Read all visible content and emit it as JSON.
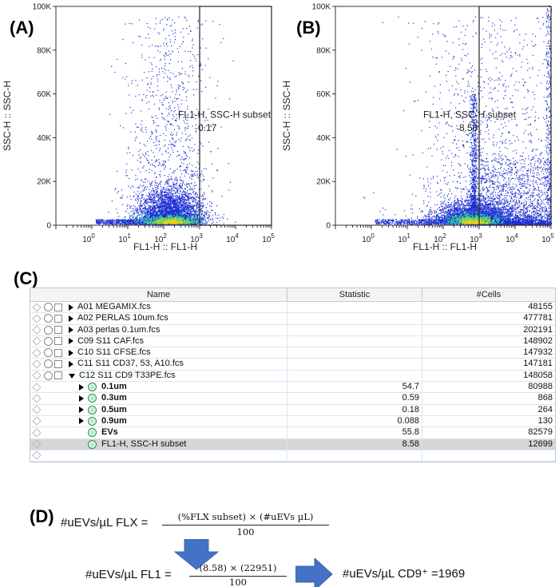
{
  "panels": {
    "a": "(A)",
    "b": "(B)",
    "c": "(C)",
    "d": "(D)"
  },
  "chart_data": [
    {
      "type": "scatter",
      "panel": "A",
      "xlabel": "FL1-H :: FL1-H",
      "ylabel": "SSC-H :: SSC-H",
      "x_scale": "log",
      "xlim": [
        0.1,
        100000
      ],
      "ylim": [
        0,
        100000
      ],
      "x_ticks": [
        1,
        10,
        100,
        1000,
        10000,
        100000
      ],
      "y_ticks": [
        0,
        20000,
        40000,
        60000,
        80000,
        100000
      ],
      "x_tick_labels": [
        {
          "base": "10",
          "exp": "0"
        },
        {
          "base": "10",
          "exp": "1"
        },
        {
          "base": "10",
          "exp": "2"
        },
        {
          "base": "10",
          "exp": "3"
        },
        {
          "base": "10",
          "exp": "4"
        },
        {
          "base": "10",
          "exp": "5"
        }
      ],
      "y_tick_labels": [
        "0",
        "20K",
        "40K",
        "60K",
        "80K",
        "100K"
      ],
      "gate": {
        "name": "FL1-H, SSC-H subset",
        "value": "0.17",
        "x_range": [
          1000,
          100000
        ],
        "y_range": [
          0,
          100000
        ]
      },
      "population": {
        "center_x": 150,
        "center_y": 1800,
        "bulk_extent_x": [
          10,
          900
        ],
        "colormap": "density (blue to green to yellow to red)"
      }
    },
    {
      "type": "scatter",
      "panel": "B",
      "xlabel": "FL1-H :: FL1-H",
      "ylabel": "SSC-H :: SSC-H",
      "x_scale": "log",
      "xlim": [
        0.1,
        100000
      ],
      "ylim": [
        0,
        100000
      ],
      "x_ticks": [
        1,
        10,
        100,
        1000,
        10000,
        100000
      ],
      "y_ticks": [
        0,
        20000,
        40000,
        60000,
        80000,
        100000
      ],
      "x_tick_labels": [
        {
          "base": "10",
          "exp": "0"
        },
        {
          "base": "10",
          "exp": "1"
        },
        {
          "base": "10",
          "exp": "2"
        },
        {
          "base": "10",
          "exp": "3"
        },
        {
          "base": "10",
          "exp": "4"
        },
        {
          "base": "10",
          "exp": "5"
        }
      ],
      "y_tick_labels": [
        "0",
        "20K",
        "40K",
        "60K",
        "80K",
        "100K"
      ],
      "gate": {
        "name": "FL1-H, SSC-H subset",
        "value": "8.58",
        "x_range": [
          1000,
          100000
        ],
        "y_range": [
          0,
          100000
        ]
      },
      "population": {
        "center_x": 700,
        "center_y": 1800,
        "bulk_extent_x": [
          50,
          100000
        ],
        "colormap": "density (blue to green to yellow to red)"
      }
    }
  ],
  "table": {
    "headers": {
      "name": "Name",
      "statistic": "Statistic",
      "cells": "#Cells"
    },
    "rows": [
      {
        "kind": "sample",
        "expander": "right",
        "name": "A01 MEGAMIX.fcs",
        "statistic": "",
        "cells": "48155"
      },
      {
        "kind": "sample",
        "expander": "right",
        "name": "A02 PERLAS 10um.fcs",
        "statistic": "",
        "cells": "477781"
      },
      {
        "kind": "sample",
        "expander": "right",
        "name": "A03 perlas 0.1um.fcs",
        "statistic": "",
        "cells": "202191"
      },
      {
        "kind": "sample",
        "expander": "right",
        "name": "C09 S11 CAF.fcs",
        "statistic": "",
        "cells": "148902"
      },
      {
        "kind": "sample",
        "expander": "right",
        "name": "C10 S11 CFSE.fcs",
        "statistic": "",
        "cells": "147932"
      },
      {
        "kind": "sample",
        "expander": "right",
        "name": "C11 S11 CD37, 53, A10.fcs",
        "statistic": "",
        "cells": "147181"
      },
      {
        "kind": "sample",
        "expander": "down",
        "name": "C12 S11 CD9 T33PE.fcs",
        "statistic": "",
        "cells": "148058"
      },
      {
        "kind": "gate",
        "expander": "right",
        "name": "0.1um",
        "bold": true,
        "statistic": "54.7",
        "cells": "80988"
      },
      {
        "kind": "gate",
        "expander": "right",
        "name": "0.3um",
        "bold": true,
        "statistic": "0.59",
        "cells": "868"
      },
      {
        "kind": "gate",
        "expander": "right",
        "name": "0.5um",
        "bold": true,
        "statistic": "0.18",
        "cells": "264"
      },
      {
        "kind": "gate",
        "expander": "right",
        "name": "0.9um",
        "bold": true,
        "statistic": "0.088",
        "cells": "130"
      },
      {
        "kind": "gate",
        "expander": "none",
        "name": "EVs",
        "bold": true,
        "statistic": "55.8",
        "cells": "82579"
      },
      {
        "kind": "gate",
        "expander": "none",
        "name": "FL1-H, SSC-H subset",
        "bold": false,
        "selected": true,
        "statistic": "8.58",
        "cells": "12699"
      },
      {
        "kind": "empty",
        "expander": "none",
        "name": "",
        "statistic": "",
        "cells": ""
      }
    ]
  },
  "formula": {
    "general_lhs": "#uEVs/µL FLX =",
    "general_num": "(%FLX subset) × (#uEVs µL)",
    "general_den": "100",
    "fl1_lhs": "#uEVs/µL FL1 =",
    "fl1_num": "(8.58) × (22951)",
    "fl1_den": "100",
    "result": "#uEVs/µL CD9⁺ =1969"
  },
  "colors": {
    "dots": "#1f2fd0",
    "density_core": "#e8d21a",
    "arrow": "#4472c4",
    "selected_row": "#d6d6d6",
    "grid_line": "#dbe7f3"
  }
}
